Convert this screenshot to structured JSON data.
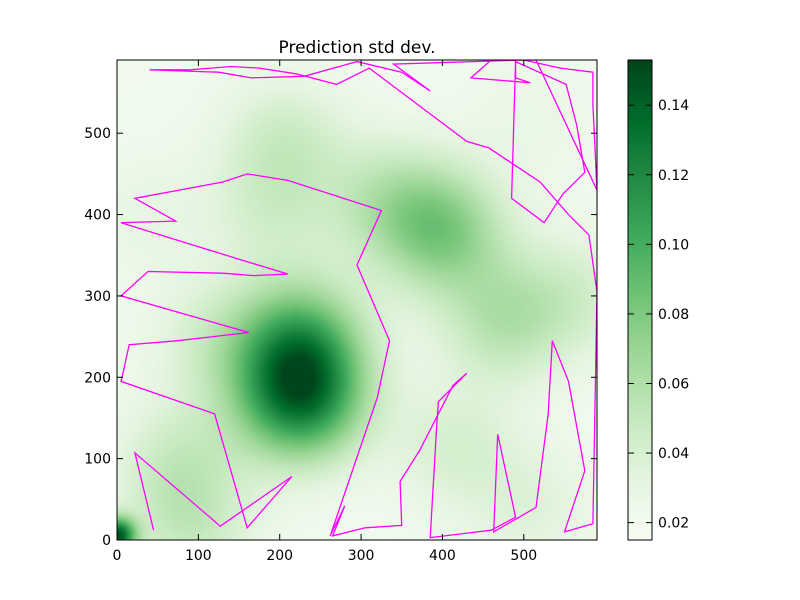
{
  "chart_data": {
    "type": "heatmap",
    "title": "Prediction std dev.",
    "xlabel": "",
    "ylabel": "",
    "xlim": [
      0,
      590
    ],
    "ylim": [
      0,
      590
    ],
    "x_ticks": [
      0,
      100,
      200,
      300,
      400,
      500
    ],
    "y_ticks": [
      0,
      100,
      200,
      300,
      400,
      500
    ],
    "colormap": "Greens",
    "colorbar": {
      "range": [
        0.015,
        0.153
      ],
      "ticks": [
        0.02,
        0.04,
        0.06,
        0.08,
        0.1,
        0.12,
        0.14
      ],
      "tick_labels": [
        "0.02",
        "0.04",
        "0.06",
        "0.08",
        "0.10",
        "0.12",
        "0.14"
      ]
    },
    "background_value": 0.02,
    "hotspots": [
      {
        "x": 225,
        "y": 175,
        "value": 0.12
      },
      {
        "x": 225,
        "y": 245,
        "value": 0.085
      },
      {
        "x": 400,
        "y": 380,
        "value": 0.075
      },
      {
        "x": 330,
        "y": 418,
        "value": 0.048
      },
      {
        "x": 190,
        "y": 400,
        "value": 0.038
      },
      {
        "x": 205,
        "y": 490,
        "value": 0.045
      },
      {
        "x": 475,
        "y": 270,
        "value": 0.055
      },
      {
        "x": 565,
        "y": 300,
        "value": 0.04
      },
      {
        "x": 120,
        "y": 245,
        "value": 0.04
      },
      {
        "x": 85,
        "y": 105,
        "value": 0.035
      },
      {
        "x": 65,
        "y": 85,
        "value": 0.03
      },
      {
        "x": 415,
        "y": 115,
        "value": 0.04
      },
      {
        "x": 0,
        "y": 5,
        "value": 0.14
      },
      {
        "x": 90,
        "y": 15,
        "value": 0.045
      },
      {
        "x": 510,
        "y": 40,
        "value": 0.035
      },
      {
        "x": 40,
        "y": 400,
        "value": 0.03
      },
      {
        "x": 510,
        "y": 520,
        "value": 0.028
      }
    ],
    "path_color": "#ff00ff",
    "path": [
      [
        45,
        12
      ],
      [
        22,
        107
      ],
      [
        127,
        17
      ],
      [
        215,
        78
      ],
      [
        160,
        15
      ],
      [
        120,
        155
      ],
      [
        5,
        195
      ],
      [
        15,
        240
      ],
      [
        75,
        245
      ],
      [
        162,
        255
      ],
      [
        5,
        300
      ],
      [
        38,
        330
      ],
      [
        130,
        328
      ],
      [
        168,
        325
      ],
      [
        210,
        327
      ],
      [
        160,
        342
      ],
      [
        5,
        390
      ],
      [
        72,
        392
      ],
      [
        22,
        420
      ],
      [
        130,
        440
      ],
      [
        160,
        450
      ],
      [
        210,
        442
      ],
      [
        325,
        405
      ],
      [
        295,
        338
      ],
      [
        335,
        245
      ],
      [
        320,
        175
      ],
      [
        262,
        5
      ],
      [
        280,
        42
      ],
      [
        265,
        5
      ],
      [
        305,
        15
      ],
      [
        350,
        18
      ],
      [
        348,
        72
      ],
      [
        372,
        110
      ],
      [
        413,
        190
      ],
      [
        430,
        205
      ],
      [
        395,
        170
      ],
      [
        393,
        140
      ],
      [
        385,
        3
      ],
      [
        460,
        12
      ],
      [
        490,
        28
      ],
      [
        468,
        130
      ],
      [
        463,
        10
      ],
      [
        515,
        40
      ],
      [
        530,
        155
      ],
      [
        535,
        245
      ],
      [
        555,
        195
      ],
      [
        575,
        85
      ],
      [
        550,
        10
      ],
      [
        585,
        20
      ],
      [
        590,
        305
      ],
      [
        580,
        375
      ],
      [
        555,
        400
      ],
      [
        520,
        440
      ],
      [
        457,
        482
      ],
      [
        430,
        490
      ],
      [
        310,
        580
      ],
      [
        270,
        560
      ],
      [
        220,
        573
      ],
      [
        175,
        580
      ],
      [
        140,
        582
      ],
      [
        90,
        578
      ],
      [
        40,
        578
      ],
      [
        125,
        575
      ],
      [
        165,
        568
      ],
      [
        230,
        570
      ],
      [
        295,
        588
      ],
      [
        350,
        575
      ],
      [
        385,
        552
      ],
      [
        340,
        585
      ],
      [
        500,
        590
      ],
      [
        545,
        580
      ],
      [
        585,
        575
      ],
      [
        585,
        535
      ],
      [
        590,
        430
      ],
      [
        515,
        590
      ],
      [
        500,
        590
      ],
      [
        460,
        590
      ],
      [
        435,
        568
      ],
      [
        508,
        562
      ],
      [
        490,
        568
      ],
      [
        490,
        588
      ],
      [
        552,
        560
      ],
      [
        565,
        510
      ],
      [
        575,
        452
      ],
      [
        548,
        425
      ],
      [
        525,
        390
      ],
      [
        485,
        420
      ],
      [
        490,
        590
      ]
    ]
  }
}
